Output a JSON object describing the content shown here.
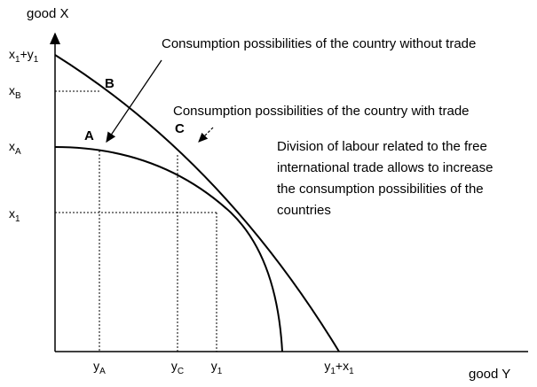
{
  "axes": {
    "y_title": "good X",
    "x_title": "good Y",
    "y_labels": [
      [
        "x",
        "1",
        "+y",
        "1"
      ],
      [
        "x",
        "B"
      ],
      [
        "x",
        "A"
      ],
      [
        "x",
        "1"
      ]
    ],
    "x_labels": [
      [
        "y",
        "A"
      ],
      [
        "y",
        "C"
      ],
      [
        "y",
        "1"
      ],
      [
        "y",
        "1",
        "+x",
        "1"
      ]
    ]
  },
  "points": [
    "A",
    "B",
    "C"
  ],
  "annotations": {
    "without_trade": "Consumption possibilities of the country without trade",
    "with_trade": "Consumption possibilities of the country with trade",
    "note": [
      "Division of labour related to the free",
      "international trade allows to increase",
      "the consumption possibilities of the",
      "countries"
    ]
  }
}
